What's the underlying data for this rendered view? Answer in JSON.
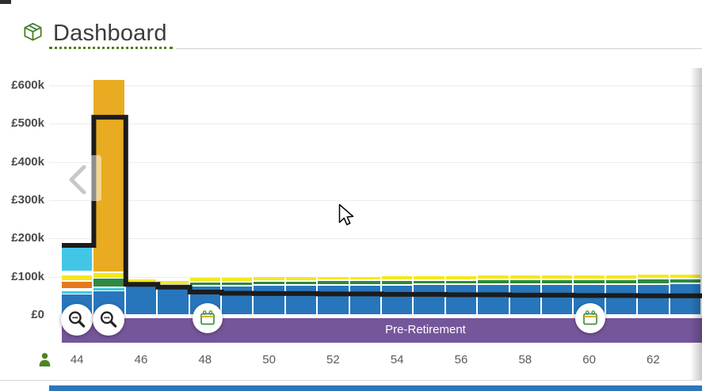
{
  "header": {
    "title": "Dashboard",
    "icon": "package-cube-icon"
  },
  "chart": {
    "phase_band": {
      "label": "Pre-Retirement",
      "color": "#76569b"
    },
    "y_axis": {
      "tick_labels": [
        "£600k",
        "£500k",
        "£400k",
        "£300k",
        "£200k",
        "£100k",
        "£0"
      ],
      "tick_values": [
        600,
        500,
        400,
        300,
        200,
        100,
        0
      ]
    },
    "x_axis": {
      "tick_labels": [
        "44",
        "46",
        "48",
        "50",
        "52",
        "54",
        "56",
        "58",
        "60",
        "62"
      ],
      "tick_values": [
        44,
        46,
        48,
        50,
        52,
        54,
        56,
        58,
        60,
        62
      ],
      "icon": "person-icon"
    },
    "controls": {
      "zoom_out_buttons": 2,
      "calendar_event_buttons": 2,
      "prev_arrow": "chevron-left-icon"
    },
    "chart_data": {
      "type": "bar",
      "stacked": true,
      "unit": "£1000",
      "ylim": [
        0,
        650
      ],
      "grid": "horizontal",
      "series_colors": {
        "blue": "#2776bb",
        "cyan": "#41c7e5",
        "orange": "#e5791d",
        "yellow": "#f5e919",
        "green": "#2d8a3e",
        "gold": "#e8ab21"
      },
      "bars": [
        {
          "age": 44,
          "segments": [
            [
              "blue",
              0,
              54
            ],
            [
              "cyan",
              54,
              63
            ],
            [
              "orange",
              69,
              87
            ],
            [
              "yellow",
              89,
              103
            ],
            [
              "cyan",
              113,
              182
            ]
          ]
        },
        {
          "age": 45,
          "segments": [
            [
              "blue",
              0,
              63
            ],
            [
              "cyan",
              63,
              70
            ],
            [
              "green",
              73,
              95
            ],
            [
              "yellow",
              95,
              110
            ],
            [
              "gold",
              112,
              615
            ]
          ]
        },
        {
          "age": 46,
          "segments": [
            [
              "blue",
              0,
              76
            ],
            [
              "yellow",
              83,
              93
            ]
          ]
        },
        {
          "age": 47,
          "segments": [
            [
              "blue",
              0,
              74
            ],
            [
              "yellow",
              79,
              90
            ]
          ]
        },
        {
          "age": 48,
          "segments": [
            [
              "blue",
              0,
              75
            ],
            [
              "green",
              77,
              85
            ],
            [
              "yellow",
              87,
              97
            ]
          ]
        },
        {
          "age": 49,
          "segments": [
            [
              "blue",
              0,
              75
            ],
            [
              "green",
              77,
              85
            ],
            [
              "yellow",
              87,
              97
            ]
          ]
        },
        {
          "age": 50,
          "segments": [
            [
              "blue",
              0,
              76
            ],
            [
              "green",
              78,
              87
            ],
            [
              "yellow",
              89,
              99
            ]
          ]
        },
        {
          "age": 51,
          "segments": [
            [
              "blue",
              0,
              76
            ],
            [
              "green",
              78,
              87
            ],
            [
              "yellow",
              89,
              99
            ]
          ]
        },
        {
          "age": 52,
          "segments": [
            [
              "blue",
              0,
              77
            ],
            [
              "green",
              79,
              88
            ],
            [
              "yellow",
              90,
              100
            ]
          ]
        },
        {
          "age": 53,
          "segments": [
            [
              "blue",
              0,
              77
            ],
            [
              "green",
              79,
              88
            ],
            [
              "yellow",
              90,
              100
            ]
          ]
        },
        {
          "age": 54,
          "segments": [
            [
              "blue",
              0,
              77
            ],
            [
              "green",
              79,
              89
            ],
            [
              "yellow",
              91,
              101
            ]
          ]
        },
        {
          "age": 55,
          "segments": [
            [
              "blue",
              0,
              78
            ],
            [
              "green",
              80,
              90
            ],
            [
              "yellow",
              92,
              102
            ]
          ]
        },
        {
          "age": 56,
          "segments": [
            [
              "blue",
              0,
              78
            ],
            [
              "green",
              80,
              90
            ],
            [
              "yellow",
              92,
              102
            ]
          ]
        },
        {
          "age": 57,
          "segments": [
            [
              "blue",
              0,
              78
            ],
            [
              "green",
              80,
              91
            ],
            [
              "yellow",
              93,
              103
            ]
          ]
        },
        {
          "age": 58,
          "segments": [
            [
              "blue",
              0,
              79
            ],
            [
              "green",
              81,
              92
            ],
            [
              "yellow",
              94,
              104
            ]
          ]
        },
        {
          "age": 59,
          "segments": [
            [
              "blue",
              0,
              79
            ],
            [
              "green",
              81,
              92
            ],
            [
              "yellow",
              94,
              104
            ]
          ]
        },
        {
          "age": 60,
          "segments": [
            [
              "blue",
              0,
              78
            ],
            [
              "green",
              80,
              91
            ],
            [
              "yellow",
              93,
              103
            ]
          ]
        },
        {
          "age": 61,
          "segments": [
            [
              "blue",
              0,
              78
            ],
            [
              "green",
              80,
              91
            ],
            [
              "yellow",
              93,
              103
            ]
          ]
        },
        {
          "age": 62,
          "segments": [
            [
              "blue",
              0,
              79
            ],
            [
              "green",
              81,
              93
            ],
            [
              "yellow",
              95,
              105
            ]
          ]
        },
        {
          "age": 63,
          "segments": [
            [
              "blue",
              0,
              80
            ],
            [
              "green",
              82,
              94
            ],
            [
              "yellow",
              96,
              106
            ]
          ]
        }
      ],
      "projection_line": {
        "color": "#1c1c1c",
        "points": [
          [
            44,
            182
          ],
          [
            45,
            517
          ],
          [
            46,
            80
          ],
          [
            47,
            73
          ],
          [
            48,
            60
          ],
          [
            49,
            57
          ],
          [
            50,
            56
          ],
          [
            51,
            56
          ],
          [
            52,
            55
          ],
          [
            53,
            55
          ],
          [
            54,
            54
          ],
          [
            55,
            54
          ],
          [
            56,
            53
          ],
          [
            57,
            53
          ],
          [
            58,
            52
          ],
          [
            59,
            52
          ],
          [
            60,
            51
          ],
          [
            61,
            51
          ],
          [
            62,
            50
          ],
          [
            63,
            50
          ]
        ]
      }
    }
  },
  "colors": {
    "title": "#3c3c3c",
    "dotted_underline": "#4f7d1d",
    "grid": "#ececec",
    "axis_text": "#5a5a5a",
    "bottom_strip": "#2b76bb"
  }
}
